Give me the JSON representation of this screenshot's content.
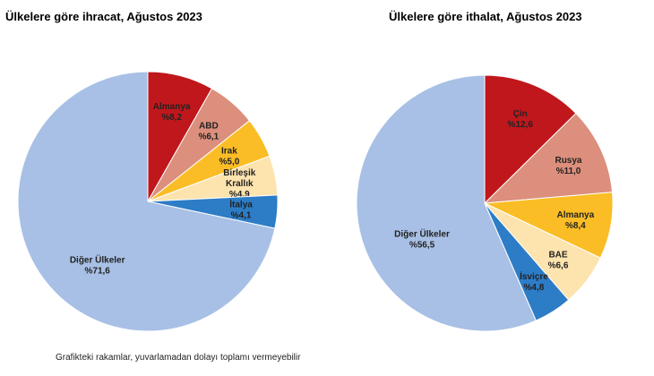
{
  "chart_data": [
    {
      "type": "pie",
      "title": "Ülkelere göre ihracat, Ağustos 2023",
      "slices": [
        {
          "label": "Almanya",
          "value": 8.2,
          "text": "%8,2",
          "color": "#c0171c"
        },
        {
          "label": "ABD",
          "value": 6.1,
          "text": "%6,1",
          "color": "#dc8f7c"
        },
        {
          "label": "Irak",
          "value": 5.0,
          "text": "%5,0",
          "color": "#fbbd26"
        },
        {
          "label": "Birleşik Krallık",
          "value": 4.9,
          "text": "%4,9",
          "color": "#fde3ae"
        },
        {
          "label": "İtalya",
          "value": 4.1,
          "text": "%4,1",
          "color": "#2d7cc6"
        },
        {
          "label": "Diğer Ülkeler",
          "value": 71.6,
          "text": "%71,6",
          "color": "#a8c0e5"
        }
      ]
    },
    {
      "type": "pie",
      "title": "Ülkelere göre ithalat, Ağustos 2023",
      "slices": [
        {
          "label": "Çin",
          "value": 12.6,
          "text": "%12,6",
          "color": "#c0171c"
        },
        {
          "label": "Rusya",
          "value": 11.0,
          "text": "%11,0",
          "color": "#dc8f7c"
        },
        {
          "label": "Almanya",
          "value": 8.4,
          "text": "%8,4",
          "color": "#fbbd26"
        },
        {
          "label": "BAE",
          "value": 6.6,
          "text": "%6,6",
          "color": "#fde3ae"
        },
        {
          "label": "İsviçre",
          "value": 4.8,
          "text": "%4,8",
          "color": "#2d7cc6"
        },
        {
          "label": "Diğer Ülkeler",
          "value": 56.5,
          "text": "%56,5",
          "color": "#a8c0e5"
        }
      ]
    }
  ],
  "note": "Grafikteki rakamlar, yuvarlamadan dolayı toplamı vermeyebilir"
}
